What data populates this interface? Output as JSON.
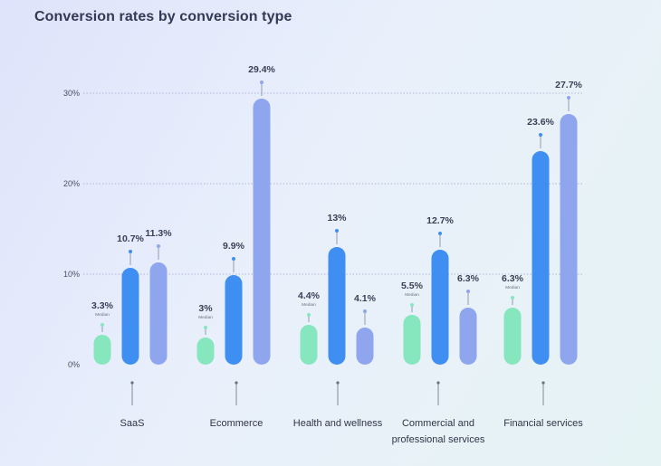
{
  "title": "Conversion rates by conversion type",
  "chart_data": {
    "type": "bar",
    "title": "Conversion rates by conversion type",
    "xlabel": "",
    "ylabel": "",
    "ylim": [
      0,
      30
    ],
    "yticks": [
      "0%",
      "10%",
      "20%",
      "30%"
    ],
    "grid": true,
    "legend": "none",
    "categories": [
      [
        "SaaS"
      ],
      [
        "Ecommerce"
      ],
      [
        "Health and wellness"
      ],
      [
        "Commercial and",
        "professional services"
      ],
      [
        "Financial services"
      ]
    ],
    "groups": [
      {
        "bars": [
          {
            "value": 3.3,
            "label": "3.3%",
            "sub": "Median",
            "color": "#86e6be"
          },
          {
            "value": 10.7,
            "label": "10.7%",
            "sub": "",
            "color": "#3f8ff2"
          },
          {
            "value": 11.3,
            "label": "11.3%",
            "sub": "",
            "color": "#8fa5ee"
          }
        ]
      },
      {
        "bars": [
          {
            "value": 3,
            "label": "3%",
            "sub": "Median",
            "color": "#86e6be"
          },
          {
            "value": 9.9,
            "label": "9.9%",
            "sub": "",
            "color": "#3f8ff2"
          },
          {
            "value": 29.4,
            "label": "29.4%",
            "sub": "",
            "color": "#8fa5ee"
          }
        ]
      },
      {
        "bars": [
          {
            "value": 4.4,
            "label": "4.4%",
            "sub": "Median",
            "color": "#86e6be"
          },
          {
            "value": 13,
            "label": "13%",
            "sub": "",
            "color": "#3f8ff2"
          },
          {
            "value": 4.1,
            "label": "4.1%",
            "sub": "",
            "color": "#8fa5ee"
          }
        ]
      },
      {
        "bars": [
          {
            "value": 5.5,
            "label": "5.5%",
            "sub": "Median",
            "color": "#86e6be"
          },
          {
            "value": 12.7,
            "label": "12.7%",
            "sub": "",
            "color": "#3f8ff2"
          },
          {
            "value": 6.3,
            "label": "6.3%",
            "sub": "",
            "color": "#8fa5ee"
          }
        ]
      },
      {
        "bars": [
          {
            "value": 6.3,
            "label": "6.3%",
            "sub": "Median",
            "color": "#86e6be"
          },
          {
            "value": 23.6,
            "label": "23.6%",
            "sub": "",
            "color": "#3f8ff2"
          },
          {
            "value": 27.7,
            "label": "27.7%",
            "sub": "",
            "color": "#8fa5ee"
          }
        ]
      }
    ]
  }
}
